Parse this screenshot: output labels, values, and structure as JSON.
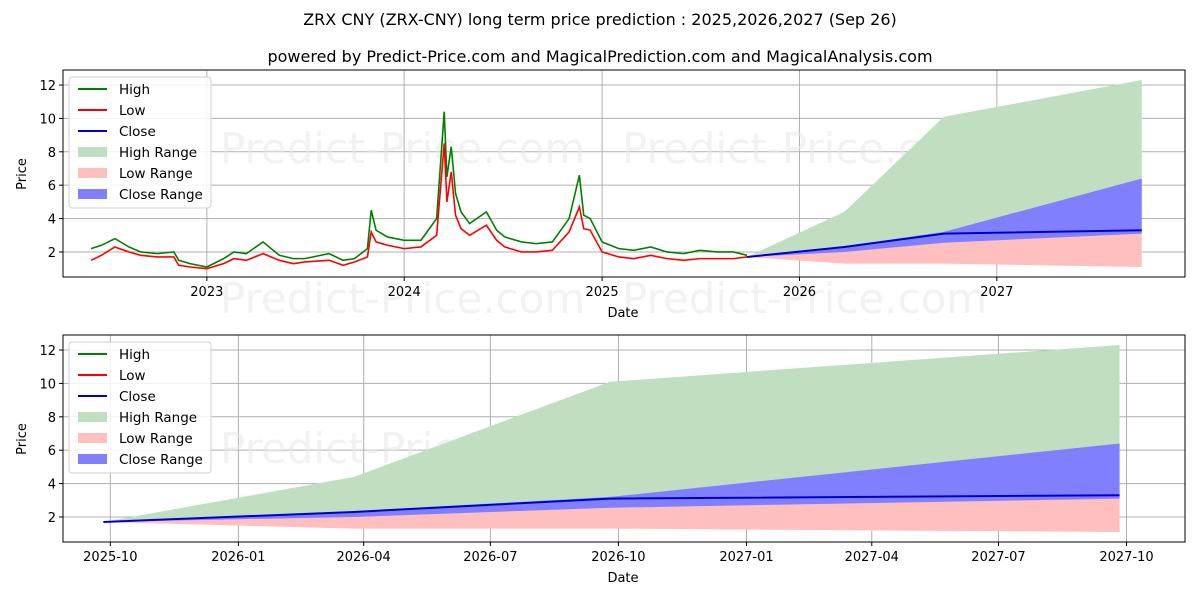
{
  "title": "ZRX CNY (ZRX-CNY) long term price prediction : 2025,2026,2027 (Sep 26)",
  "subtitle": "powered by Predict-Price.com and MagicalPrediction.com and MagicalAnalysis.com",
  "watermark": "Predict-Price.com",
  "colors": {
    "high": "#008000",
    "low": "#ff0000",
    "close": "#0000cd",
    "high_range": "#c0dfc0",
    "low_range": "#ffbfbf",
    "close_range": "#8080ff",
    "grid": "#b0b0b0"
  },
  "legend": [
    {
      "label": "High",
      "type": "line",
      "color_key": "high"
    },
    {
      "label": "Low",
      "type": "line",
      "color_key": "low"
    },
    {
      "label": "Close",
      "type": "line",
      "color_key": "close"
    },
    {
      "label": "High Range",
      "type": "patch",
      "color_key": "high_range"
    },
    {
      "label": "Low Range",
      "type": "patch",
      "color_key": "low_range"
    },
    {
      "label": "Close Range",
      "type": "patch",
      "color_key": "close_range"
    }
  ],
  "chart_data": [
    {
      "type": "line",
      "title": "Top panel: full history + forecast",
      "xlabel": "Date",
      "ylabel": "Price",
      "ylim": [
        0.5,
        12.9
      ],
      "xlim": [
        "2022-04-10",
        "2027-12-15"
      ],
      "x_ticks": [
        "2023",
        "2024",
        "2025",
        "2026",
        "2027"
      ],
      "y_ticks": [
        2,
        4,
        6,
        8,
        10,
        12
      ],
      "grid": true,
      "legend_position": "upper left",
      "history": {
        "dates": [
          "2022-06-01",
          "2022-06-20",
          "2022-07-15",
          "2022-08-10",
          "2022-09-01",
          "2022-10-01",
          "2022-11-01",
          "2022-11-10",
          "2022-12-01",
          "2023-01-01",
          "2023-02-01",
          "2023-02-20",
          "2023-03-15",
          "2023-04-15",
          "2023-05-15",
          "2023-06-10",
          "2023-07-01",
          "2023-08-15",
          "2023-09-10",
          "2023-10-01",
          "2023-10-25",
          "2023-11-01",
          "2023-11-10",
          "2023-12-01",
          "2024-01-01",
          "2024-02-01",
          "2024-03-01",
          "2024-03-15",
          "2024-03-20",
          "2024-03-28",
          "2024-04-05",
          "2024-04-15",
          "2024-05-01",
          "2024-06-01",
          "2024-06-20",
          "2024-07-05",
          "2024-08-05",
          "2024-09-01",
          "2024-10-01",
          "2024-11-01",
          "2024-11-20",
          "2024-11-28",
          "2024-12-10",
          "2025-01-01",
          "2025-02-01",
          "2025-03-01",
          "2025-04-01",
          "2025-05-01",
          "2025-06-01",
          "2025-07-01",
          "2025-08-01",
          "2025-09-01",
          "2025-09-26"
        ],
        "high": [
          2.2,
          2.4,
          2.8,
          2.3,
          2.0,
          1.9,
          2.0,
          1.5,
          1.3,
          1.1,
          1.6,
          2.0,
          1.9,
          2.6,
          1.8,
          1.6,
          1.6,
          1.9,
          1.5,
          1.6,
          2.2,
          4.5,
          3.3,
          2.9,
          2.7,
          2.7,
          4.0,
          10.4,
          6.5,
          8.3,
          5.5,
          4.4,
          3.7,
          4.4,
          3.3,
          2.9,
          2.6,
          2.5,
          2.6,
          4.0,
          6.6,
          4.2,
          4.0,
          2.6,
          2.2,
          2.1,
          2.3,
          2.0,
          1.9,
          2.1,
          2.0,
          2.0,
          1.8
        ],
        "low": [
          1.5,
          1.8,
          2.3,
          2.0,
          1.8,
          1.7,
          1.7,
          1.2,
          1.1,
          1.0,
          1.3,
          1.6,
          1.5,
          1.9,
          1.5,
          1.3,
          1.4,
          1.5,
          1.2,
          1.4,
          1.7,
          3.2,
          2.6,
          2.4,
          2.2,
          2.3,
          3.0,
          8.5,
          5.0,
          6.8,
          4.2,
          3.4,
          3.0,
          3.6,
          2.7,
          2.3,
          2.0,
          2.0,
          2.1,
          3.2,
          4.7,
          3.4,
          3.3,
          2.0,
          1.7,
          1.6,
          1.8,
          1.6,
          1.5,
          1.6,
          1.6,
          1.6,
          1.7
        ]
      },
      "forecast": {
        "dates": [
          "2025-09-26",
          "2026-03-25",
          "2026-09-25",
          "2027-09-26"
        ],
        "close": [
          1.7,
          2.3,
          3.1,
          3.3
        ],
        "high_range_top": [
          1.7,
          4.4,
          10.1,
          12.3
        ],
        "close_range_top": [
          1.7,
          2.35,
          3.2,
          6.4
        ],
        "close_range_bottom": [
          1.7,
          2.0,
          2.55,
          3.1
        ],
        "low_range_bottom": [
          1.7,
          1.3,
          1.3,
          1.1
        ]
      }
    },
    {
      "type": "line",
      "title": "Bottom panel: forecast zoom",
      "xlabel": "Date",
      "ylabel": "Price",
      "ylim": [
        0.5,
        12.9
      ],
      "xlim": [
        "2025-08-28",
        "2027-11-12"
      ],
      "x_ticks": [
        "2025-10",
        "2026-01",
        "2026-04",
        "2026-07",
        "2026-10",
        "2027-01",
        "2027-04",
        "2027-07",
        "2027-10"
      ],
      "y_ticks": [
        2,
        4,
        6,
        8,
        10,
        12
      ],
      "grid": true,
      "legend_position": "upper left"
    }
  ],
  "top": {
    "xlabel": "Date",
    "ylabel": "Price",
    "x_ticks": [
      "2023",
      "2024",
      "2025",
      "2026",
      "2027"
    ],
    "y_ticks": [
      "2",
      "4",
      "6",
      "8",
      "10",
      "12"
    ]
  },
  "bottom": {
    "xlabel": "Date",
    "ylabel": "Price",
    "x_ticks": [
      "2025-10",
      "2026-01",
      "2026-04",
      "2026-07",
      "2026-10",
      "2027-01",
      "2027-04",
      "2027-07",
      "2027-10"
    ],
    "y_ticks": [
      "2",
      "4",
      "6",
      "8",
      "10",
      "12"
    ]
  }
}
